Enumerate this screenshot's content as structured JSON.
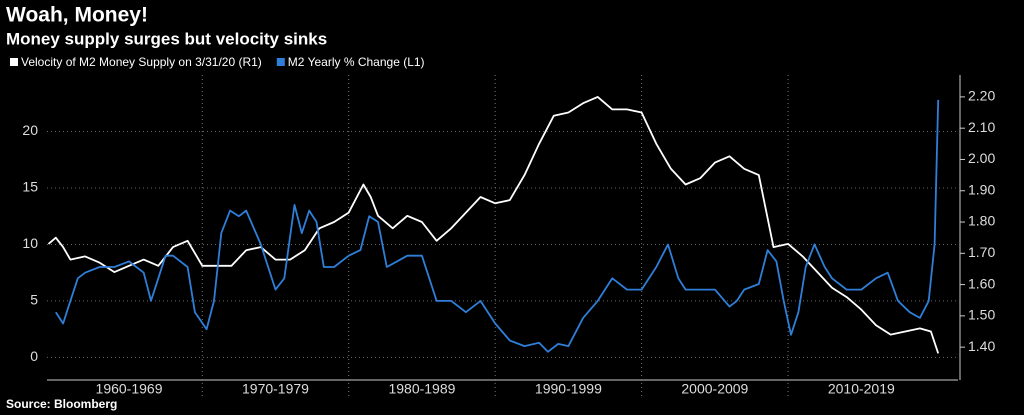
{
  "chart_data": {
    "type": "line",
    "title": "Woah, Money!",
    "subtitle": "Money supply surges but velocity sinks",
    "source": "Source: Bloomberg",
    "xlim": [
      1959.4,
      2021.6
    ],
    "xticks": [
      {
        "value": 1965,
        "label": "1960-1969"
      },
      {
        "value": 1975,
        "label": "1970-1979"
      },
      {
        "value": 1985,
        "label": "1980-1989"
      },
      {
        "value": 1995,
        "label": "1990-1999"
      },
      {
        "value": 2005,
        "label": "2000-2009"
      },
      {
        "value": 2015,
        "label": "2010-2019"
      }
    ],
    "ylim": [
      -2,
      25
    ],
    "yticks": [
      0,
      5,
      10,
      15,
      20
    ],
    "y2lim": [
      1.295,
      2.27
    ],
    "y2ticks": [
      {
        "value": 1.4,
        "label": "1.40"
      },
      {
        "value": 1.5,
        "label": "1.50"
      },
      {
        "value": 1.6,
        "label": "1.60"
      },
      {
        "value": 1.7,
        "label": "1.70"
      },
      {
        "value": 1.8,
        "label": "1.80"
      },
      {
        "value": 1.9,
        "label": "1.90"
      },
      {
        "value": 2.0,
        "label": "2.00"
      },
      {
        "value": 2.1,
        "label": "2.10"
      },
      {
        "value": 2.2,
        "label": "2.20"
      }
    ],
    "grid": true,
    "series": [
      {
        "name": "Velocity of M2 Money Supply on 3/31/20 (R1)",
        "color": "#ffffff",
        "axis": "y2",
        "x": [
          1959.5,
          1960,
          1960.5,
          1961,
          1962,
          1963,
          1964,
          1965,
          1966,
          1967,
          1968,
          1969,
          1970,
          1971,
          1972,
          1973,
          1974,
          1975,
          1976,
          1977,
          1978,
          1979,
          1980,
          1981,
          1981.5,
          1982,
          1983,
          1984,
          1985,
          1986,
          1987,
          1988,
          1989,
          1990,
          1991,
          1992,
          1993,
          1994,
          1995,
          1996,
          1997,
          1998,
          1999,
          2000,
          2001,
          2002,
          2003,
          2004,
          2005,
          2006,
          2007,
          2008,
          2009,
          2010,
          2011,
          2012,
          2013,
          2014,
          2015,
          2016,
          2017,
          2018,
          2019,
          2019.75,
          2020.25
        ],
        "values": [
          1.73,
          1.75,
          1.72,
          1.68,
          1.69,
          1.67,
          1.64,
          1.66,
          1.68,
          1.66,
          1.72,
          1.74,
          1.66,
          1.66,
          1.66,
          1.71,
          1.72,
          1.68,
          1.68,
          1.71,
          1.78,
          1.8,
          1.83,
          1.92,
          1.88,
          1.82,
          1.78,
          1.82,
          1.8,
          1.74,
          1.78,
          1.83,
          1.88,
          1.86,
          1.87,
          1.95,
          2.05,
          2.14,
          2.15,
          2.18,
          2.2,
          2.16,
          2.16,
          2.15,
          2.05,
          1.97,
          1.92,
          1.94,
          1.99,
          2.01,
          1.97,
          1.95,
          1.72,
          1.73,
          1.69,
          1.64,
          1.59,
          1.56,
          1.52,
          1.47,
          1.44,
          1.45,
          1.46,
          1.45,
          1.38
        ]
      },
      {
        "name": "M2 Yearly % Change (L1)",
        "color": "#2f7fd8",
        "axis": "y",
        "x": [
          1960,
          1960.5,
          1961,
          1961.5,
          1962,
          1963,
          1964,
          1965,
          1966,
          1966.5,
          1967,
          1967.5,
          1968,
          1969,
          1969.5,
          1970.3,
          1970.8,
          1971.3,
          1971.9,
          1972.5,
          1973,
          1974,
          1975,
          1975.6,
          1976.3,
          1976.8,
          1977.3,
          1977.8,
          1978.3,
          1979,
          1980,
          1980.8,
          1981.4,
          1982,
          1982.6,
          1983.3,
          1984,
          1985,
          1986,
          1987,
          1988,
          1989,
          1990,
          1991,
          1992,
          1993,
          1993.6,
          1994.3,
          1995,
          1996,
          1997,
          1998,
          1999,
          2000,
          2001,
          2001.8,
          2002.5,
          2003,
          2004,
          2005,
          2006,
          2006.5,
          2007,
          2008,
          2008.6,
          2009.2,
          2009.7,
          2010.2,
          2010.7,
          2011.2,
          2011.8,
          2012.5,
          2013,
          2014,
          2015,
          2016,
          2016.8,
          2017.5,
          2018.3,
          2019,
          2019.6,
          2020,
          2020.25
        ],
        "values": [
          4,
          3,
          5,
          7,
          7.5,
          8,
          8,
          8.5,
          7.5,
          5,
          7,
          9,
          9,
          8,
          4,
          2.5,
          5,
          11,
          13,
          12.5,
          13,
          10,
          6,
          7,
          13.5,
          11,
          13,
          12,
          8,
          8,
          9,
          9.5,
          12.5,
          12,
          8,
          8.5,
          9,
          9,
          5,
          5,
          4,
          5,
          3,
          1.5,
          1,
          1.3,
          0.5,
          1.2,
          1,
          3.5,
          5,
          7,
          6,
          6,
          8,
          10,
          7,
          6,
          6,
          6,
          4.5,
          5,
          6,
          6.5,
          9.5,
          8.5,
          5,
          2,
          4,
          8,
          10,
          8,
          7,
          6,
          6,
          7,
          7.5,
          5,
          4,
          3.5,
          5,
          10,
          22.8
        ]
      }
    ]
  }
}
